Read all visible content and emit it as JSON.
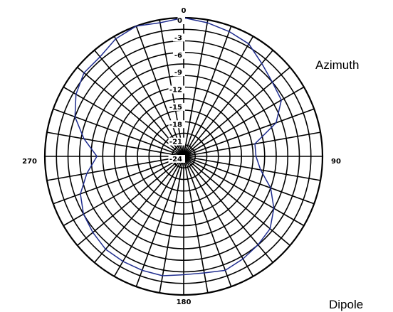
{
  "labels": {
    "azimuth": "Azimuth",
    "dipole": "Dipole"
  },
  "chart_data": {
    "type": "polar",
    "title": "",
    "angle_labels": [
      {
        "angle": 0,
        "text": "0"
      },
      {
        "angle": 90,
        "text": "90"
      },
      {
        "angle": 180,
        "text": "180"
      },
      {
        "angle": 270,
        "text": "270"
      }
    ],
    "radial_ticks": [
      "0",
      "-3",
      "-6",
      "-9",
      "-12",
      "-15",
      "-18",
      "-21",
      "-24"
    ],
    "radial_range_db": [
      -24,
      0
    ],
    "radial_grid_db": [
      0,
      -2,
      -4,
      -6,
      -8,
      -10,
      -12,
      -14,
      -16,
      -18,
      -20,
      -22
    ],
    "angular_grid_step_deg": 10,
    "grid": true,
    "series_color": "#1f2d8f",
    "series": [
      {
        "angles_deg": [
          0,
          10,
          20,
          30,
          40,
          50,
          60,
          70,
          80,
          90,
          100,
          110,
          120,
          130,
          140,
          150,
          160,
          170,
          180,
          190,
          200,
          210,
          220,
          230,
          240,
          250,
          260,
          270,
          280,
          290,
          300,
          310,
          320,
          330,
          340,
          350
        ],
        "values_db": [
          0,
          -0.5,
          -1,
          -1.5,
          -3,
          -4,
          -4.5,
          -7,
          -11.5,
          -11.5,
          -10.5,
          -8,
          -6,
          -4.5,
          -4,
          -3.5,
          -3,
          -3.5,
          -3.5,
          -3,
          -3,
          -3,
          -3,
          -3.5,
          -4,
          -5,
          -7,
          -9,
          -6.5,
          -4,
          -2.5,
          -1.5,
          -1.5,
          -0.5,
          0,
          -0.5
        ]
      }
    ]
  }
}
